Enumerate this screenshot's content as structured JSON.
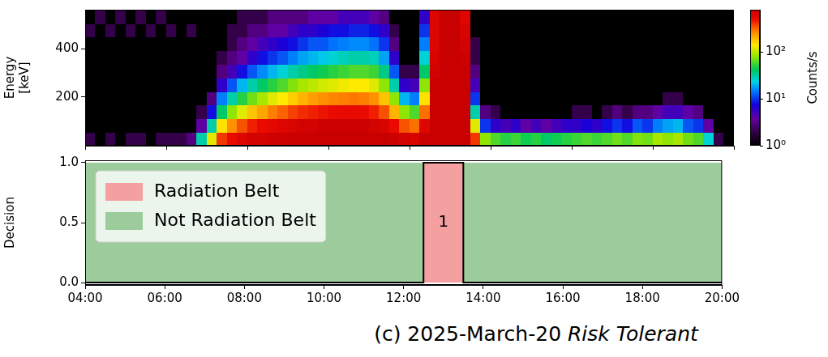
{
  "chart_data": [
    {
      "type": "heatmap",
      "ylabel": "Energy [keV]",
      "x_edges": [
        4,
        4.25,
        4.5,
        4.75,
        5,
        5.25,
        5.5,
        5.75,
        6,
        6.25,
        6.5,
        6.75,
        7,
        7.25,
        7.5,
        7.75,
        8,
        8.25,
        8.5,
        8.75,
        9,
        9.25,
        9.5,
        9.75,
        10,
        10.25,
        10.5,
        10.75,
        11,
        11.25,
        11.5,
        11.75,
        12,
        12.25,
        12.5,
        12.75,
        13,
        13.25,
        13.5,
        13.75,
        14,
        14.25,
        14.5,
        14.75,
        15,
        15.25,
        15.5,
        15.75,
        16,
        16.25,
        16.5,
        16.75,
        17,
        17.25,
        17.5,
        17.75,
        18,
        18.25,
        18.5,
        18.75,
        19,
        19.25,
        19.5,
        19.75,
        20
      ],
      "y_edges": [
        0,
        56,
        112,
        168,
        224,
        280,
        336,
        392,
        448,
        504,
        560
      ],
      "counts": [
        [
          2,
          1,
          0,
          0,
          0,
          0,
          0,
          1,
          2,
          1
        ],
        [
          1,
          0,
          0,
          0,
          0,
          0,
          1,
          0,
          1,
          2
        ],
        [
          2,
          1,
          0,
          0,
          0,
          0,
          0,
          0,
          2,
          1
        ],
        [
          1,
          0,
          0,
          0,
          0,
          0,
          0,
          1,
          1,
          2
        ],
        [
          2,
          0,
          0,
          0,
          0,
          0,
          0,
          0,
          2,
          1
        ],
        [
          2,
          1,
          0,
          0,
          0,
          0,
          0,
          1,
          1,
          2
        ],
        [
          1,
          0,
          0,
          0,
          0,
          0,
          0,
          0,
          2,
          1
        ],
        [
          2,
          0,
          0,
          0,
          0,
          0,
          1,
          0,
          1,
          2
        ],
        [
          2,
          1,
          0,
          0,
          0,
          0,
          0,
          1,
          2,
          1
        ],
        [
          2,
          1,
          0,
          0,
          0,
          0,
          0,
          0,
          1,
          1
        ],
        [
          3,
          1,
          0,
          0,
          0,
          0,
          0,
          1,
          2,
          1
        ],
        [
          30,
          4,
          2,
          1,
          0,
          0,
          0,
          0,
          1,
          1
        ],
        [
          120,
          30,
          8,
          3,
          1,
          0,
          0,
          0,
          1,
          1
        ],
        [
          400,
          150,
          40,
          15,
          6,
          3,
          2,
          1,
          1,
          1
        ],
        [
          500,
          250,
          80,
          30,
          12,
          5,
          3,
          2,
          2,
          1
        ],
        [
          600,
          350,
          120,
          50,
          20,
          8,
          4,
          3,
          2,
          2
        ],
        [
          700,
          450,
          180,
          70,
          30,
          12,
          6,
          4,
          3,
          2
        ],
        [
          700,
          500,
          220,
          90,
          40,
          16,
          8,
          5,
          3,
          2
        ],
        [
          750,
          550,
          280,
          120,
          50,
          20,
          10,
          6,
          4,
          3
        ],
        [
          750,
          600,
          320,
          140,
          60,
          25,
          12,
          7,
          4,
          3
        ],
        [
          800,
          650,
          380,
          170,
          75,
          30,
          15,
          8,
          5,
          3
        ],
        [
          800,
          700,
          420,
          200,
          90,
          35,
          18,
          10,
          6,
          3
        ],
        [
          800,
          700,
          450,
          230,
          100,
          40,
          20,
          12,
          6,
          4
        ],
        [
          800,
          750,
          480,
          250,
          110,
          45,
          22,
          12,
          7,
          4
        ],
        [
          800,
          750,
          500,
          270,
          120,
          50,
          25,
          14,
          8,
          4
        ],
        [
          800,
          750,
          520,
          280,
          130,
          55,
          28,
          15,
          8,
          5
        ],
        [
          800,
          750,
          520,
          290,
          140,
          60,
          30,
          16,
          9,
          5
        ],
        [
          800,
          750,
          500,
          280,
          140,
          60,
          30,
          16,
          9,
          5
        ],
        [
          800,
          700,
          450,
          250,
          120,
          55,
          28,
          14,
          8,
          4
        ],
        [
          800,
          650,
          350,
          180,
          80,
          35,
          18,
          10,
          6,
          3
        ],
        [
          750,
          500,
          200,
          80,
          30,
          12,
          6,
          3,
          2,
          1
        ],
        [
          700,
          350,
          80,
          20,
          6,
          2,
          1,
          0,
          1,
          0
        ],
        [
          650,
          300,
          60,
          15,
          5,
          2,
          1,
          1,
          0,
          1
        ],
        [
          800,
          600,
          300,
          150,
          80,
          40,
          25,
          15,
          10,
          6
        ],
        [
          800,
          800,
          800,
          800,
          800,
          700,
          650,
          600,
          600,
          600
        ],
        [
          800,
          800,
          800,
          800,
          800,
          800,
          800,
          800,
          800,
          800
        ],
        [
          800,
          800,
          800,
          800,
          800,
          800,
          800,
          800,
          800,
          800
        ],
        [
          800,
          800,
          800,
          800,
          800,
          800,
          750,
          700,
          650,
          600
        ],
        [
          400,
          120,
          30,
          10,
          5,
          3,
          2,
          2,
          1,
          1
        ],
        [
          80,
          10,
          3,
          1,
          0,
          0,
          0,
          0,
          1,
          0
        ],
        [
          60,
          6,
          2,
          0,
          0,
          0,
          0,
          0,
          0,
          0
        ],
        [
          50,
          5,
          1,
          0,
          0,
          0,
          0,
          0,
          1,
          0
        ],
        [
          55,
          6,
          1,
          0,
          0,
          0,
          0,
          0,
          0,
          1
        ],
        [
          45,
          4,
          1,
          0,
          0,
          0,
          0,
          0,
          0,
          0
        ],
        [
          50,
          5,
          1,
          0,
          0,
          0,
          0,
          1,
          0,
          0
        ],
        [
          40,
          4,
          1,
          0,
          0,
          0,
          0,
          0,
          0,
          1
        ],
        [
          45,
          5,
          1,
          0,
          0,
          0,
          0,
          0,
          0,
          0
        ],
        [
          50,
          6,
          1,
          0,
          0,
          0,
          0,
          0,
          1,
          0
        ],
        [
          55,
          6,
          2,
          0,
          0,
          0,
          0,
          0,
          0,
          0
        ],
        [
          60,
          7,
          2,
          0,
          0,
          0,
          0,
          0,
          0,
          1
        ],
        [
          55,
          6,
          1,
          0,
          0,
          0,
          0,
          0,
          0,
          0
        ],
        [
          60,
          8,
          2,
          1,
          0,
          0,
          0,
          0,
          0,
          0
        ],
        [
          70,
          10,
          3,
          1,
          0,
          0,
          0,
          0,
          1,
          0
        ],
        [
          60,
          8,
          2,
          0,
          0,
          0,
          0,
          0,
          0,
          0
        ],
        [
          75,
          12,
          3,
          1,
          0,
          0,
          0,
          0,
          0,
          1
        ],
        [
          70,
          10,
          3,
          1,
          0,
          0,
          0,
          0,
          0,
          0
        ],
        [
          90,
          15,
          4,
          1,
          0,
          0,
          0,
          0,
          0,
          0
        ],
        [
          80,
          18,
          5,
          2,
          1,
          0,
          0,
          0,
          0,
          0
        ],
        [
          90,
          20,
          5,
          2,
          1,
          0,
          0,
          0,
          0,
          0
        ],
        [
          70,
          12,
          4,
          1,
          0,
          0,
          0,
          0,
          0,
          0
        ],
        [
          60,
          10,
          3,
          1,
          0,
          0,
          0,
          0,
          0,
          0
        ],
        [
          25,
          4,
          1,
          0,
          0,
          0,
          0,
          0,
          0,
          0
        ],
        [
          2,
          0,
          0,
          0,
          0,
          0,
          0,
          0,
          0,
          0
        ],
        [
          1,
          0,
          0,
          0,
          0,
          0,
          0,
          0,
          0,
          0
        ]
      ],
      "xlim": [
        4,
        20
      ],
      "xticks": [
        {
          "value": 4,
          "label": "04:00"
        },
        {
          "value": 6,
          "label": "06:00"
        },
        {
          "value": 8,
          "label": "08:00"
        },
        {
          "value": 10,
          "label": "10:00"
        },
        {
          "value": 12,
          "label": "12:00"
        },
        {
          "value": 14,
          "label": "14:00"
        },
        {
          "value": 16,
          "label": "16:00"
        },
        {
          "value": 18,
          "label": "18:00"
        },
        {
          "value": 20,
          "label": "20:00"
        }
      ],
      "ylim": [
        0,
        560
      ],
      "yticks": [
        200,
        400
      ],
      "tick_labels": "y",
      "grid": false,
      "colorbar": {
        "label": "Counts/s",
        "log": true,
        "lim": [
          1,
          800
        ],
        "ticks": [
          {
            "value": 1,
            "label": "10⁰"
          },
          {
            "value": 10,
            "label": "10¹"
          },
          {
            "value": 100,
            "label": "10²"
          }
        ]
      }
    },
    {
      "type": "line",
      "ylabel": "Decision",
      "x": [
        4,
        12.5,
        12.5,
        13.5,
        13.5,
        20
      ],
      "values": [
        0,
        0,
        1,
        1,
        0,
        0
      ],
      "color": "#000000",
      "regions": [
        {
          "name": "Radiation Belt",
          "color": "#f4a0a0",
          "start": 12.5,
          "end": 13.5,
          "value": 1
        },
        {
          "name": "Not Radiation Belt",
          "color": "#9ccb9c",
          "start": 4,
          "end": 20,
          "value": 1
        }
      ],
      "annotations": [
        {
          "text": "1",
          "x": 13,
          "y": 0.5
        }
      ],
      "xlim": [
        4,
        20
      ],
      "xticks": [
        {
          "value": 4,
          "label": "04:00"
        },
        {
          "value": 6,
          "label": "06:00"
        },
        {
          "value": 8,
          "label": "08:00"
        },
        {
          "value": 10,
          "label": "10:00"
        },
        {
          "value": 12,
          "label": "12:00"
        },
        {
          "value": 14,
          "label": "14:00"
        },
        {
          "value": 16,
          "label": "16:00"
        },
        {
          "value": 18,
          "label": "18:00"
        },
        {
          "value": 20,
          "label": "20:00"
        }
      ],
      "ylim": [
        -0.02,
        1.02
      ],
      "yticks": [
        {
          "value": 0,
          "label": "0.0"
        },
        {
          "value": 0.5,
          "label": "0.5"
        },
        {
          "value": 1,
          "label": "1.0"
        }
      ],
      "legend": "upper left",
      "grid": false,
      "caption": {
        "text": "(c) 2025-March-20",
        "emphasis": "Risk Tolerant"
      }
    }
  ]
}
